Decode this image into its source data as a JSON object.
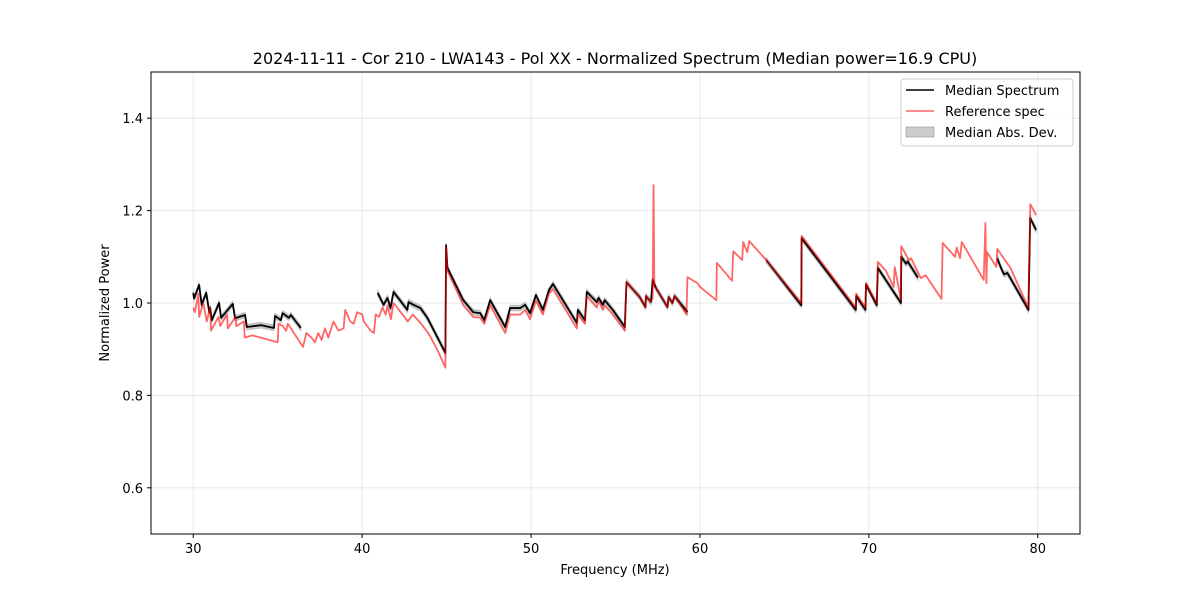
{
  "chart_data": {
    "type": "line",
    "title": "2024-11-11 - Cor 210 - LWA143 - Pol XX - Normalized Spectrum (Median power=16.9 CPU)",
    "xlabel": "Frequency (MHz)",
    "ylabel": "Normalized Power",
    "xlim": [
      27.5,
      82.5
    ],
    "ylim": [
      0.5,
      1.5
    ],
    "xticks": [
      30,
      40,
      50,
      60,
      70,
      80
    ],
    "xtick_labels": [
      "30",
      "40",
      "50",
      "60",
      "70",
      "80"
    ],
    "yticks": [
      0.6,
      0.8,
      1.0,
      1.2,
      1.4
    ],
    "ytick_labels": [
      "0.6",
      "0.8",
      "1.0",
      "1.2",
      "1.4"
    ],
    "grid": true,
    "legend_position": "top-right",
    "legend": [
      "Median Spectrum",
      "Reference spec",
      "Median Abs. Dev."
    ],
    "mad": 0.006,
    "series": [
      {
        "name": "Median Spectrum",
        "color": "#000000",
        "segments": [
          [
            [
              30.0,
              1.022
            ],
            [
              30.05,
              1.01
            ],
            [
              30.35,
              1.039
            ],
            [
              30.5,
              0.996
            ],
            [
              30.77,
              1.022
            ],
            [
              30.95,
              0.98
            ],
            [
              31.0,
              0.99
            ],
            [
              31.1,
              0.963
            ],
            [
              31.53,
              1.0
            ],
            [
              31.65,
              0.968
            ],
            [
              32.34,
              0.998
            ],
            [
              32.48,
              0.967
            ],
            [
              33.07,
              0.974
            ],
            [
              33.17,
              0.948
            ],
            [
              34.0,
              0.952
            ],
            [
              34.78,
              0.946
            ],
            [
              34.84,
              0.972
            ],
            [
              35.19,
              0.963
            ],
            [
              35.29,
              0.978
            ],
            [
              35.66,
              0.968
            ],
            [
              35.78,
              0.974
            ],
            [
              36.37,
              0.946
            ]
          ],
          [
            [
              40.92,
              1.022
            ],
            [
              41.27,
              0.996
            ],
            [
              41.5,
              1.011
            ],
            [
              41.68,
              0.989
            ],
            [
              41.86,
              1.024
            ],
            [
              42.68,
              0.985
            ],
            [
              42.74,
              1.002
            ],
            [
              43.04,
              0.996
            ],
            [
              43.45,
              0.989
            ],
            [
              43.86,
              0.968
            ],
            [
              44.93,
              0.892
            ],
            [
              44.97,
              1.125
            ],
            [
              45.05,
              1.076
            ],
            [
              45.99,
              1.006
            ],
            [
              46.58,
              0.98
            ],
            [
              46.99,
              0.978
            ],
            [
              47.23,
              0.963
            ],
            [
              47.58,
              1.006
            ],
            [
              48.47,
              0.948
            ],
            [
              48.76,
              0.989
            ],
            [
              49.35,
              0.989
            ],
            [
              49.65,
              0.996
            ],
            [
              49.94,
              0.978
            ],
            [
              50.29,
              1.017
            ],
            [
              50.7,
              0.985
            ],
            [
              51.06,
              1.028
            ],
            [
              51.3,
              1.041
            ],
            [
              52.71,
              0.957
            ],
            [
              52.77,
              0.985
            ],
            [
              53.19,
              0.963
            ],
            [
              53.3,
              1.024
            ],
            [
              53.89,
              1.002
            ],
            [
              54.0,
              1.011
            ],
            [
              54.25,
              0.996
            ],
            [
              54.36,
              1.006
            ],
            [
              54.84,
              0.985
            ],
            [
              55.55,
              0.948
            ],
            [
              55.65,
              1.045
            ],
            [
              56.43,
              1.013
            ],
            [
              56.78,
              0.991
            ],
            [
              56.8,
              1.015
            ],
            [
              57.1,
              1.002
            ],
            [
              57.2,
              1.05
            ],
            [
              57.4,
              1.032
            ],
            [
              58.08,
              0.991
            ],
            [
              58.14,
              1.013
            ],
            [
              58.37,
              1.0
            ],
            [
              58.5,
              1.015
            ],
            [
              59.26,
              0.98
            ]
          ],
          [
            [
              63.92,
              1.093
            ],
            [
              66.0,
              0.995
            ],
            [
              66.02,
              1.14
            ],
            [
              69.23,
              0.985
            ],
            [
              69.25,
              1.015
            ],
            [
              69.8,
              0.985
            ],
            [
              69.83,
              1.04
            ],
            [
              70.47,
              0.995
            ],
            [
              70.53,
              1.076
            ],
            [
              71.9,
              1.0
            ],
            [
              71.92,
              1.1
            ],
            [
              72.2,
              1.085
            ],
            [
              72.3,
              1.09
            ],
            [
              72.9,
              1.055
            ]
          ],
          [
            [
              77.6,
              1.097
            ],
            [
              77.8,
              1.078
            ],
            [
              78.0,
              1.062
            ],
            [
              78.2,
              1.065
            ],
            [
              79.45,
              0.985
            ],
            [
              79.55,
              1.184
            ],
            [
              79.9,
              1.158
            ]
          ]
        ]
      },
      {
        "name": "Reference spec",
        "color": "#ff0000",
        "segments": [
          [
            [
              30.0,
              0.99
            ],
            [
              30.1,
              0.98
            ],
            [
              30.3,
              1.02
            ],
            [
              30.35,
              0.97
            ],
            [
              30.6,
              1.0
            ],
            [
              30.8,
              0.96
            ],
            [
              31.0,
              0.99
            ],
            [
              31.05,
              0.94
            ],
            [
              31.5,
              0.97
            ],
            [
              31.6,
              0.95
            ],
            [
              32.0,
              0.975
            ],
            [
              32.05,
              0.945
            ],
            [
              32.5,
              0.97
            ],
            [
              32.55,
              0.95
            ],
            [
              33.0,
              0.96
            ],
            [
              33.05,
              0.925
            ],
            [
              33.5,
              0.93
            ],
            [
              34.0,
              0.925
            ],
            [
              35.0,
              0.915
            ],
            [
              35.05,
              0.955
            ],
            [
              35.3,
              0.95
            ],
            [
              35.5,
              0.94
            ],
            [
              35.6,
              0.955
            ],
            [
              36.5,
              0.905
            ],
            [
              36.7,
              0.935
            ],
            [
              37.0,
              0.925
            ],
            [
              37.2,
              0.915
            ],
            [
              37.4,
              0.935
            ],
            [
              37.6,
              0.92
            ],
            [
              37.8,
              0.945
            ],
            [
              38.0,
              0.925
            ],
            [
              38.3,
              0.96
            ],
            [
              38.6,
              0.94
            ],
            [
              38.9,
              0.945
            ],
            [
              39.0,
              0.985
            ],
            [
              39.3,
              0.96
            ],
            [
              39.5,
              0.955
            ],
            [
              39.7,
              0.98
            ],
            [
              40.0,
              0.975
            ],
            [
              40.1,
              0.96
            ],
            [
              40.5,
              0.94
            ],
            [
              40.7,
              0.935
            ],
            [
              40.8,
              0.975
            ],
            [
              41.0,
              0.97
            ],
            [
              41.2,
              0.99
            ],
            [
              41.4,
              0.975
            ],
            [
              41.5,
              0.995
            ],
            [
              41.7,
              0.965
            ],
            [
              41.86,
              1.0
            ],
            [
              42.5,
              0.97
            ],
            [
              42.7,
              0.96
            ],
            [
              43.0,
              0.975
            ],
            [
              43.5,
              0.955
            ],
            [
              44.0,
              0.93
            ],
            [
              44.5,
              0.895
            ],
            [
              44.93,
              0.86
            ],
            [
              44.97,
              1.12
            ],
            [
              45.05,
              1.07
            ],
            [
              45.99,
              0.995
            ],
            [
              46.58,
              0.97
            ],
            [
              46.99,
              0.968
            ],
            [
              47.23,
              0.955
            ],
            [
              47.58,
              0.995
            ],
            [
              48.47,
              0.935
            ],
            [
              48.76,
              0.975
            ],
            [
              49.35,
              0.975
            ],
            [
              49.65,
              0.985
            ],
            [
              49.94,
              0.965
            ],
            [
              50.29,
              1.005
            ],
            [
              50.7,
              0.975
            ],
            [
              51.06,
              1.02
            ],
            [
              51.3,
              1.03
            ],
            [
              52.71,
              0.945
            ],
            [
              52.77,
              0.975
            ],
            [
              53.19,
              0.955
            ],
            [
              53.3,
              1.015
            ],
            [
              53.89,
              0.99
            ],
            [
              54.0,
              1.005
            ],
            [
              54.25,
              0.985
            ],
            [
              54.36,
              0.995
            ],
            [
              54.84,
              0.975
            ],
            [
              55.55,
              0.94
            ],
            [
              55.65,
              1.045
            ],
            [
              56.43,
              1.013
            ],
            [
              56.78,
              0.991
            ],
            [
              56.8,
              1.015
            ],
            [
              57.1,
              1.002
            ],
            [
              57.2,
              1.01
            ],
            [
              57.25,
              1.255
            ],
            [
              57.3,
              1.035
            ],
            [
              57.4,
              1.032
            ],
            [
              58.08,
              0.991
            ],
            [
              58.14,
              1.013
            ],
            [
              58.37,
              1.0
            ],
            [
              58.5,
              1.015
            ],
            [
              59.2,
              0.975
            ],
            [
              59.26,
              1.056
            ],
            [
              59.85,
              1.043
            ],
            [
              60.0,
              1.035
            ],
            [
              60.97,
              1.006
            ],
            [
              61.0,
              1.087
            ],
            [
              61.9,
              1.048
            ],
            [
              61.97,
              1.112
            ],
            [
              62.5,
              1.093
            ],
            [
              62.56,
              1.132
            ],
            [
              62.8,
              1.11
            ],
            [
              62.92,
              1.134
            ],
            [
              63.92,
              1.093
            ],
            [
              66.0,
              1.0
            ],
            [
              66.02,
              1.145
            ],
            [
              69.23,
              0.99
            ],
            [
              69.25,
              1.02
            ],
            [
              69.8,
              0.99
            ],
            [
              69.83,
              1.043
            ],
            [
              70.47,
              1.0
            ],
            [
              70.53,
              1.089
            ],
            [
              71.0,
              1.07
            ],
            [
              71.47,
              1.035
            ],
            [
              71.53,
              1.078
            ],
            [
              71.9,
              1.006
            ],
            [
              71.92,
              1.123
            ],
            [
              72.37,
              1.093
            ],
            [
              72.5,
              1.097
            ],
            [
              73.07,
              1.054
            ],
            [
              73.36,
              1.06
            ],
            [
              74.3,
              1.009
            ],
            [
              74.37,
              1.13
            ],
            [
              75.1,
              1.1
            ],
            [
              75.2,
              1.12
            ],
            [
              75.4,
              1.097
            ],
            [
              75.5,
              1.132
            ],
            [
              76.8,
              1.05
            ],
            [
              76.9,
              1.173
            ],
            [
              76.96,
              1.043
            ],
            [
              77.0,
              1.11
            ],
            [
              77.55,
              1.078
            ],
            [
              77.6,
              1.117
            ],
            [
              78.38,
              1.076
            ],
            [
              79.44,
              0.99
            ],
            [
              79.56,
              1.214
            ],
            [
              79.9,
              1.19
            ]
          ]
        ]
      }
    ]
  }
}
